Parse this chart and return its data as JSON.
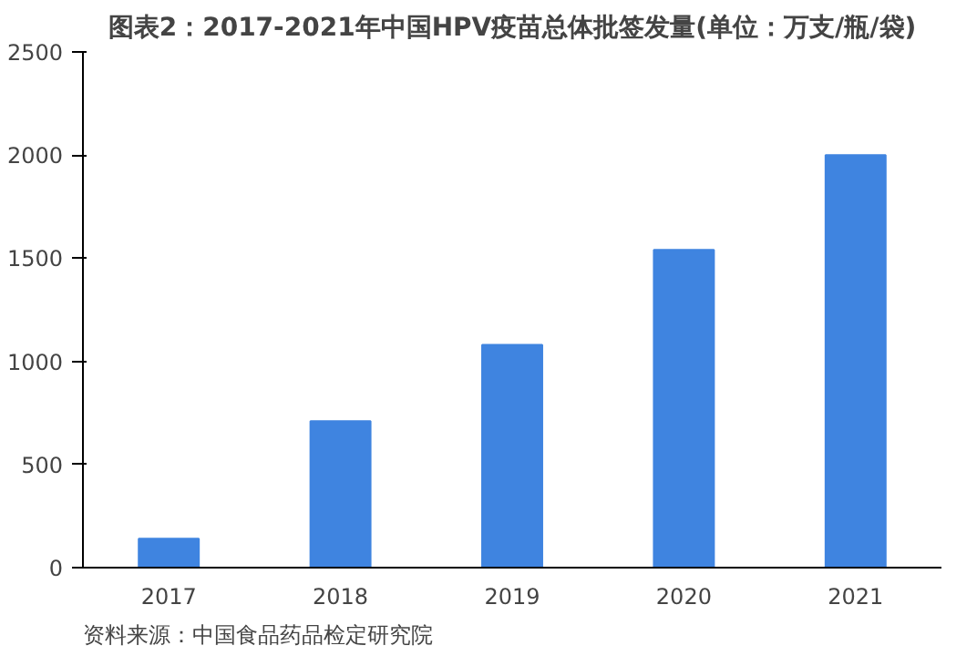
{
  "chart_data": {
    "type": "bar",
    "title": "图表2：2017-2021年中国HPV疫苗总体批签发量(单位：万支/瓶/袋)",
    "categories": [
      "2017",
      "2018",
      "2019",
      "2020",
      "2021"
    ],
    "values": [
      140,
      710,
      1080,
      1540,
      2000
    ],
    "color": "#3f84e0",
    "ylim": [
      0,
      2500
    ],
    "yticks": [
      0,
      500,
      1000,
      1500,
      2000,
      2500
    ],
    "grid": false,
    "annotations": [
      "资料来源：中国食品药品检定研究院"
    ]
  }
}
